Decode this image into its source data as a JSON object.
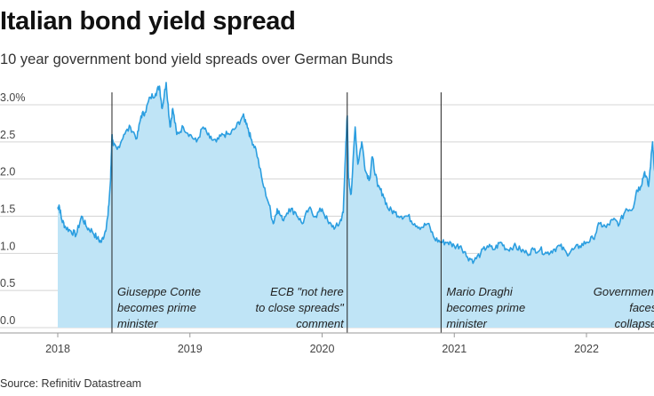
{
  "title": "Italian bond yield spread",
  "subtitle": "10 year government bond yield spreads over German Bunds",
  "source": "Source: Refinitiv Datastream",
  "colors": {
    "area": "#bfe4f6",
    "line": "#2b9ee0",
    "grid": "#d4d4d4",
    "event_line": "#222222"
  },
  "chart_data": {
    "type": "area",
    "title": "Italian bond yield spread",
    "ylim": [
      0,
      3.0
    ],
    "xlim": [
      2017.9,
      2022.6
    ],
    "yticks": [
      0,
      0.5,
      1.0,
      1.5,
      2.0,
      2.5,
      3.0
    ],
    "ytick_labels": [
      "0.0",
      "0.5",
      "1.0",
      "1.5",
      "2.0",
      "2.5",
      "3.0%"
    ],
    "xticks": [
      2018,
      2019,
      2020,
      2021,
      2022
    ],
    "xtick_labels": [
      "2018",
      "2019",
      "2020",
      "2021",
      "2022"
    ],
    "grid": "horizontal",
    "series": [
      {
        "x": [
          2018.0,
          2018.01,
          2018.03,
          2018.06,
          2018.1,
          2018.14,
          2018.18,
          2018.22,
          2018.26,
          2018.3,
          2018.33,
          2018.36,
          2018.38,
          2018.4,
          2018.41,
          2018.42,
          2018.45,
          2018.5,
          2018.55,
          2018.6,
          2018.63,
          2018.66,
          2018.7,
          2018.74,
          2018.77,
          2018.79,
          2018.82,
          2018.85,
          2018.87,
          2018.9,
          2018.95,
          2019.0,
          2019.05,
          2019.1,
          2019.15,
          2019.2,
          2019.25,
          2019.3,
          2019.35,
          2019.4,
          2019.43,
          2019.46,
          2019.5,
          2019.55,
          2019.6,
          2019.63,
          2019.66,
          2019.7,
          2019.75,
          2019.8,
          2019.85,
          2019.9,
          2019.95,
          2020.0,
          2020.05,
          2020.1,
          2020.13,
          2020.16,
          2020.18,
          2020.19,
          2020.2,
          2020.22,
          2020.25,
          2020.27,
          2020.3,
          2020.33,
          2020.36,
          2020.38,
          2020.42,
          2020.46,
          2020.5,
          2020.55,
          2020.6,
          2020.65,
          2020.7,
          2020.75,
          2020.8,
          2020.85,
          2020.9,
          2020.95,
          2021.0,
          2021.05,
          2021.1,
          2021.15,
          2021.2,
          2021.25,
          2021.3,
          2021.35,
          2021.4,
          2021.45,
          2021.5,
          2021.55,
          2021.6,
          2021.65,
          2021.7,
          2021.75,
          2021.8,
          2021.85,
          2021.9,
          2021.95,
          2022.0,
          2022.05,
          2022.1,
          2022.15,
          2022.2,
          2022.25,
          2022.3,
          2022.35,
          2022.38,
          2022.41,
          2022.44,
          2022.47,
          2022.5,
          2022.52,
          2022.54,
          2022.56
        ],
        "values": [
          1.6,
          1.65,
          1.45,
          1.35,
          1.3,
          1.25,
          1.5,
          1.35,
          1.3,
          1.2,
          1.15,
          1.3,
          1.5,
          2.0,
          2.6,
          2.45,
          2.4,
          2.6,
          2.7,
          2.55,
          2.85,
          2.9,
          3.1,
          3.15,
          3.25,
          2.95,
          3.3,
          2.7,
          2.95,
          2.6,
          2.7,
          2.6,
          2.5,
          2.7,
          2.55,
          2.5,
          2.6,
          2.6,
          2.7,
          2.85,
          2.75,
          2.55,
          2.4,
          1.95,
          1.65,
          1.4,
          1.6,
          1.45,
          1.6,
          1.55,
          1.4,
          1.6,
          1.5,
          1.6,
          1.4,
          1.35,
          1.4,
          1.55,
          2.5,
          2.85,
          2.0,
          1.8,
          2.7,
          2.2,
          2.5,
          2.1,
          2.0,
          2.3,
          1.9,
          1.8,
          1.6,
          1.55,
          1.5,
          1.5,
          1.4,
          1.35,
          1.4,
          1.2,
          1.15,
          1.15,
          1.1,
          1.1,
          0.95,
          0.9,
          1.0,
          1.1,
          1.05,
          1.15,
          1.05,
          1.1,
          1.05,
          1.0,
          1.05,
          1.05,
          1.0,
          1.05,
          1.1,
          1.0,
          1.05,
          1.1,
          1.15,
          1.2,
          1.4,
          1.35,
          1.45,
          1.4,
          1.6,
          1.6,
          1.85,
          1.9,
          2.1,
          1.9,
          2.5,
          2.0,
          2.15,
          2.2
        ]
      }
    ],
    "annotations": [
      {
        "x": 2018.41,
        "lines": [
          "Giuseppe Conte",
          "becomes prime",
          "minister"
        ],
        "align": "left"
      },
      {
        "x": 2020.19,
        "lines": [
          "ECB \"not here",
          "to close spreads\"",
          "comment"
        ],
        "align": "right"
      },
      {
        "x": 2020.9,
        "lines": [
          "Mario Draghi",
          "becomes prime",
          "minister"
        ],
        "align": "left"
      },
      {
        "x": 2022.56,
        "lines": [
          "Government",
          "faces",
          "collapse"
        ],
        "align": "right"
      }
    ]
  }
}
